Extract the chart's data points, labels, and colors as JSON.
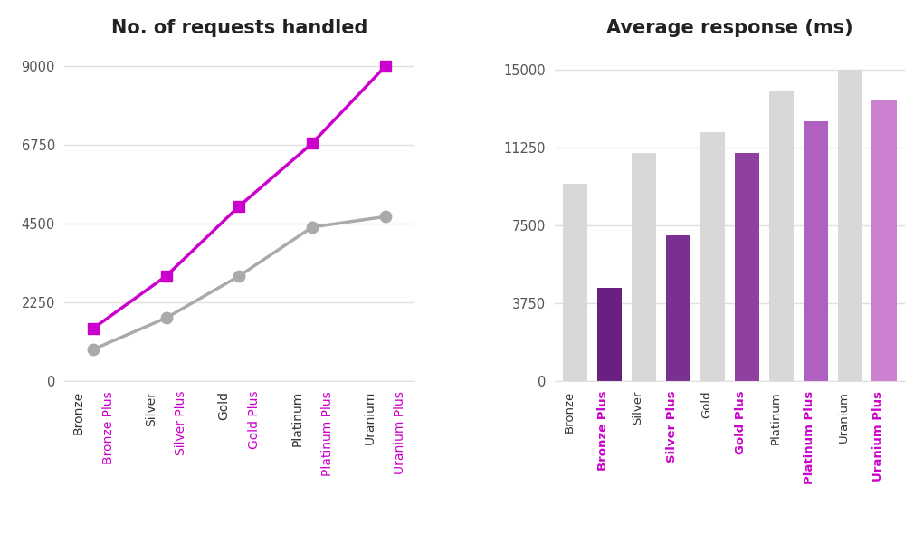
{
  "line_normal": [
    900,
    1800,
    3000,
    4400,
    4700
  ],
  "line_plus": [
    1500,
    3000,
    5000,
    6800,
    9000
  ],
  "line_normal_color": "#aaaaaa",
  "line_plus_color": "#cc00cc",
  "line_chart_title": "No. of requests handled",
  "line_ylim": [
    0,
    9500
  ],
  "line_yticks": [
    0,
    2250,
    4500,
    6750,
    9000
  ],
  "line_xtick_normal": [
    "Bronze",
    "Silver",
    "Gold",
    "Platinum",
    "Uranium"
  ],
  "line_xtick_plus": [
    "Bronze Plus",
    "Silver Plus",
    "Gold Plus",
    "Platinum Plus",
    "Uranium Plus"
  ],
  "bar_categories": [
    "Bronze",
    "Bronze Plus",
    "Silver",
    "Silver Plus",
    "Gold",
    "Gold Plus",
    "Platinum",
    "Platinum Plus",
    "Uranium",
    "Uranium Plus"
  ],
  "bar_values": [
    9500,
    4500,
    11000,
    7000,
    12000,
    11000,
    14000,
    12500,
    15000,
    13500
  ],
  "bar_chart_title": "Average response (ms)",
  "bar_ylim": [
    0,
    16000
  ],
  "bar_yticks": [
    0,
    3750,
    7500,
    11250,
    15000
  ],
  "normal_bar_color": "#d8d8d8",
  "label_normal_color": "#333333",
  "label_plus_color": "#cc00cc",
  "background_color": "#ffffff",
  "grid_color": "#e0e0e0",
  "plus_bar_colors": [
    "#6a2080",
    "#7a3090",
    "#9040a0",
    "#b060c0",
    "#cc80d0"
  ]
}
